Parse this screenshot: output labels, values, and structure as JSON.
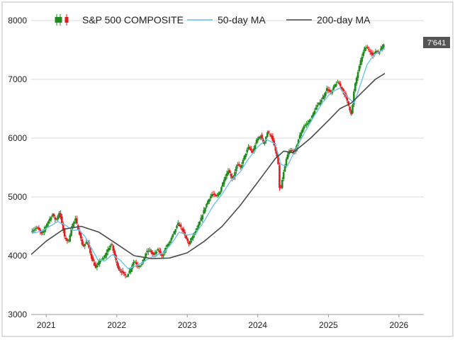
{
  "chart_data": {
    "type": "candlestick",
    "ylim": [
      3000,
      8000
    ],
    "y_ticks": [
      3000,
      4000,
      5000,
      6000,
      7000,
      8000
    ],
    "x_ticks": [
      "2021",
      "2022",
      "2023",
      "2024",
      "2025",
      "2026"
    ],
    "x_range": [
      "2020-10-15",
      "2026-05-10"
    ],
    "grid": {
      "horizontal": true,
      "vertical": false
    },
    "legend": {
      "position": "top",
      "entries": [
        {
          "label": "S&P 500 COMPOSITE",
          "kind": "candle",
          "colors": [
            "#1e8a1e",
            "#e31a1c"
          ]
        },
        {
          "label": "50-day MA",
          "kind": "line",
          "color": "#6ec3ea"
        },
        {
          "label": "200-day MA",
          "kind": "line",
          "color": "#4a4a4a"
        }
      ]
    },
    "last_value_tag": "7'641",
    "colors": {
      "up": "#1e8a1e",
      "down": "#e31a1c",
      "ma50": "#6ec3ea",
      "ma200": "#4a4a4a",
      "tag_bg": "#555555",
      "grid": "#d9d9d9",
      "frame": "#bfbfbf"
    },
    "series": [
      {
        "name": "S&P 500 COMPOSITE",
        "kind": "close",
        "points": [
          [
            "2020-10-20",
            4430
          ],
          [
            "2020-11-15",
            4480
          ],
          [
            "2020-12-10",
            4360
          ],
          [
            "2021-01-05",
            4550
          ],
          [
            "2021-02-01",
            4700
          ],
          [
            "2021-02-20",
            4600
          ],
          [
            "2021-03-10",
            4740
          ],
          [
            "2021-03-20",
            4600
          ],
          [
            "2021-04-05",
            4320
          ],
          [
            "2021-04-25",
            4230
          ],
          [
            "2021-05-15",
            4520
          ],
          [
            "2021-06-01",
            4620
          ],
          [
            "2021-06-20",
            4400
          ],
          [
            "2021-07-10",
            4150
          ],
          [
            "2021-08-01",
            4250
          ],
          [
            "2021-08-25",
            3950
          ],
          [
            "2021-09-15",
            3780
          ],
          [
            "2021-10-05",
            3920
          ],
          [
            "2021-10-25",
            3950
          ],
          [
            "2021-11-15",
            4100
          ],
          [
            "2021-12-05",
            4200
          ],
          [
            "2021-12-25",
            3950
          ],
          [
            "2022-01-10",
            3780
          ],
          [
            "2022-02-01",
            3700
          ],
          [
            "2022-02-20",
            3650
          ],
          [
            "2022-03-10",
            3750
          ],
          [
            "2022-04-01",
            3920
          ],
          [
            "2022-04-20",
            3820
          ],
          [
            "2022-05-10",
            3850
          ],
          [
            "2022-06-01",
            4050
          ],
          [
            "2022-06-20",
            4100
          ],
          [
            "2022-07-10",
            4000
          ],
          [
            "2022-08-01",
            4100
          ],
          [
            "2022-08-25",
            4000
          ],
          [
            "2022-09-15",
            4150
          ],
          [
            "2022-10-05",
            4250
          ],
          [
            "2022-10-25",
            4400
          ],
          [
            "2022-11-15",
            4550
          ],
          [
            "2022-12-05",
            4450
          ],
          [
            "2022-12-25",
            4300
          ],
          [
            "2023-01-10",
            4200
          ],
          [
            "2023-02-01",
            4350
          ],
          [
            "2023-02-20",
            4450
          ],
          [
            "2023-03-10",
            4600
          ],
          [
            "2023-04-01",
            4800
          ],
          [
            "2023-04-20",
            4950
          ],
          [
            "2023-05-10",
            5050
          ],
          [
            "2023-06-01",
            5000
          ],
          [
            "2023-06-20",
            5100
          ],
          [
            "2023-07-10",
            5300
          ],
          [
            "2023-08-01",
            5450
          ],
          [
            "2023-08-25",
            5300
          ],
          [
            "2023-09-15",
            5550
          ],
          [
            "2023-10-05",
            5500
          ],
          [
            "2023-10-25",
            5700
          ],
          [
            "2023-11-15",
            5850
          ],
          [
            "2023-12-05",
            5750
          ],
          [
            "2023-12-25",
            5950
          ],
          [
            "2024-01-15",
            6050
          ],
          [
            "2024-02-01",
            5900
          ],
          [
            "2024-02-20",
            6100
          ],
          [
            "2024-03-10",
            6050
          ],
          [
            "2024-04-01",
            5800
          ],
          [
            "2024-04-15",
            5600
          ],
          [
            "2024-04-25",
            5050
          ],
          [
            "2024-05-10",
            5350
          ],
          [
            "2024-06-01",
            5700
          ],
          [
            "2024-06-20",
            5800
          ],
          [
            "2024-07-10",
            5750
          ],
          [
            "2024-08-01",
            6000
          ],
          [
            "2024-08-25",
            6200
          ],
          [
            "2024-09-15",
            6250
          ],
          [
            "2024-10-05",
            6350
          ],
          [
            "2024-10-25",
            6500
          ],
          [
            "2024-11-15",
            6600
          ],
          [
            "2024-12-05",
            6700
          ],
          [
            "2024-12-25",
            6850
          ],
          [
            "2025-01-15",
            6750
          ],
          [
            "2025-02-01",
            6900
          ],
          [
            "2025-02-20",
            6950
          ],
          [
            "2025-03-10",
            6850
          ],
          [
            "2025-04-01",
            6700
          ],
          [
            "2025-04-20",
            6500
          ],
          [
            "2025-05-01",
            6400
          ],
          [
            "2025-05-15",
            6850
          ],
          [
            "2025-06-01",
            7100
          ],
          [
            "2025-06-20",
            7350
          ],
          [
            "2025-07-10",
            7550
          ],
          [
            "2025-08-01",
            7500
          ],
          [
            "2025-08-20",
            7400
          ],
          [
            "2025-09-05",
            7500
          ],
          [
            "2025-09-20",
            7450
          ],
          [
            "2025-10-05",
            7550
          ],
          [
            "2025-10-20",
            7641
          ]
        ]
      },
      {
        "name": "50-day MA",
        "kind": "line",
        "points": [
          [
            "2020-10-20",
            4380
          ],
          [
            "2020-12-10",
            4420
          ],
          [
            "2021-01-20",
            4500
          ],
          [
            "2021-03-01",
            4580
          ],
          [
            "2021-04-10",
            4520
          ],
          [
            "2021-05-20",
            4430
          ],
          [
            "2021-06-20",
            4440
          ],
          [
            "2021-07-20",
            4330
          ],
          [
            "2021-08-20",
            4150
          ],
          [
            "2021-09-25",
            3930
          ],
          [
            "2021-11-01",
            3910
          ],
          [
            "2021-12-10",
            4020
          ],
          [
            "2022-01-20",
            3920
          ],
          [
            "2022-03-01",
            3780
          ],
          [
            "2022-04-20",
            3840
          ],
          [
            "2022-06-01",
            3920
          ],
          [
            "2022-07-15",
            4000
          ],
          [
            "2022-09-01",
            4050
          ],
          [
            "2022-10-15",
            4220
          ],
          [
            "2022-11-20",
            4400
          ],
          [
            "2023-01-01",
            4350
          ],
          [
            "2023-02-15",
            4380
          ],
          [
            "2023-04-01",
            4600
          ],
          [
            "2023-05-15",
            4850
          ],
          [
            "2023-07-01",
            5050
          ],
          [
            "2023-08-15",
            5280
          ],
          [
            "2023-10-01",
            5420
          ],
          [
            "2023-11-15",
            5650
          ],
          [
            "2024-01-01",
            5850
          ],
          [
            "2024-02-15",
            5980
          ],
          [
            "2024-04-01",
            5900
          ],
          [
            "2024-05-01",
            5550
          ],
          [
            "2024-06-01",
            5520
          ],
          [
            "2024-07-15",
            5800
          ],
          [
            "2024-09-01",
            6100
          ],
          [
            "2024-10-15",
            6350
          ],
          [
            "2024-12-01",
            6600
          ],
          [
            "2025-01-15",
            6780
          ],
          [
            "2025-03-01",
            6850
          ],
          [
            "2025-04-15",
            6680
          ],
          [
            "2025-05-15",
            6600
          ],
          [
            "2025-06-15",
            6900
          ],
          [
            "2025-07-20",
            7250
          ],
          [
            "2025-08-25",
            7420
          ],
          [
            "2025-10-20",
            7520
          ]
        ]
      },
      {
        "name": "200-day MA",
        "kind": "line",
        "points": [
          [
            "2020-10-15",
            4020
          ],
          [
            "2021-01-01",
            4250
          ],
          [
            "2021-04-01",
            4450
          ],
          [
            "2021-07-01",
            4500
          ],
          [
            "2021-10-01",
            4400
          ],
          [
            "2022-01-01",
            4200
          ],
          [
            "2022-04-01",
            4000
          ],
          [
            "2022-07-01",
            3950
          ],
          [
            "2022-10-01",
            3960
          ],
          [
            "2023-01-01",
            4050
          ],
          [
            "2023-04-01",
            4250
          ],
          [
            "2023-07-01",
            4500
          ],
          [
            "2023-10-01",
            4850
          ],
          [
            "2024-01-01",
            5250
          ],
          [
            "2024-04-01",
            5650
          ],
          [
            "2024-05-15",
            5780
          ],
          [
            "2024-07-01",
            5750
          ],
          [
            "2024-10-01",
            6000
          ],
          [
            "2025-01-01",
            6300
          ],
          [
            "2025-03-01",
            6500
          ],
          [
            "2025-05-01",
            6600
          ],
          [
            "2025-07-01",
            6800
          ],
          [
            "2025-09-01",
            7000
          ],
          [
            "2025-10-20",
            7100
          ]
        ]
      }
    ]
  }
}
